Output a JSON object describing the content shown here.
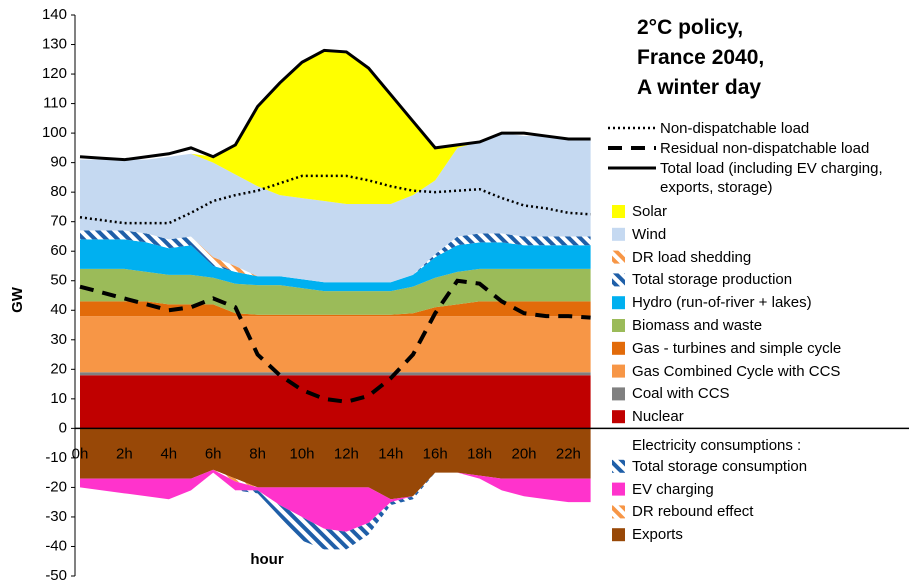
{
  "chart_data": {
    "type": "stacked-area",
    "title": [
      "2°C policy,",
      "France 2040,",
      "A winter day"
    ],
    "xlabel": "hour",
    "ylabel": "GW",
    "categories": [
      "0h",
      null,
      "2h",
      null,
      "4h",
      null,
      "6h",
      null,
      "8h",
      null,
      "10h",
      null,
      "12h",
      null,
      "14h",
      null,
      "16h",
      null,
      "18h",
      null,
      "20h",
      null,
      "22h",
      null
    ],
    "ylim": [
      -50,
      140
    ],
    "yticks": [
      -50,
      -40,
      -30,
      -20,
      -10,
      0,
      10,
      20,
      30,
      40,
      50,
      60,
      70,
      80,
      90,
      100,
      110,
      120,
      130,
      140
    ],
    "consumption_heading": "Electricity consumptions :",
    "series": [
      {
        "name": "Nuclear",
        "color": "#c00000",
        "values": [
          18,
          18,
          18,
          18,
          18,
          18,
          18,
          18,
          18,
          18,
          18,
          18,
          18,
          18,
          18,
          18,
          18,
          18,
          18,
          18,
          18,
          18,
          18,
          18
        ]
      },
      {
        "name": "Coal with CCS",
        "color": "#808080",
        "values": [
          1,
          1,
          1,
          1,
          1,
          1,
          1,
          1,
          1,
          1,
          1,
          1,
          1,
          1,
          1,
          1,
          1,
          1,
          1,
          1,
          1,
          1,
          1,
          1
        ]
      },
      {
        "name": "Gas Combined Cycle with CCS",
        "color": "#f79646",
        "values": [
          19,
          19,
          19,
          19,
          19,
          19,
          19,
          19,
          19,
          19,
          19,
          19,
          19,
          19,
          19,
          19,
          19,
          19,
          19,
          19,
          19,
          19,
          19,
          19
        ]
      },
      {
        "name": "Gas - turbines and simple cycle",
        "color": "#e26b0a",
        "values": [
          5,
          5,
          5,
          5,
          4,
          4,
          4,
          1,
          0.5,
          0.5,
          0.5,
          0.5,
          0.5,
          0.5,
          0.5,
          1,
          3,
          4,
          5,
          5,
          5,
          5,
          5,
          5
        ]
      },
      {
        "name": "Biomass and waste",
        "color": "#9bbb59",
        "values": [
          11,
          11,
          11,
          10,
          10,
          10,
          9,
          10,
          10,
          10,
          9,
          8,
          8,
          8,
          8,
          9,
          10,
          11,
          11,
          11,
          11,
          11,
          11,
          11
        ]
      },
      {
        "name": "Hydro (run-of-river + lakes)",
        "color": "#00b0f0",
        "values": [
          10,
          10,
          10,
          10,
          9,
          10,
          4,
          4,
          3,
          3,
          3,
          3,
          3,
          3,
          3,
          4,
          7,
          9,
          9,
          9,
          8,
          8,
          8,
          8
        ]
      },
      {
        "name": "Total storage production",
        "color": "#1f5fa8",
        "hatch": true,
        "values": [
          3,
          3,
          3,
          3,
          3,
          3,
          1,
          0,
          0,
          0,
          0,
          0,
          0,
          0,
          0,
          0,
          1,
          3,
          3,
          3,
          3,
          3,
          3,
          3
        ]
      },
      {
        "name": "DR load shedding",
        "color": "#f79646",
        "hatch": true,
        "values": [
          0,
          0,
          0,
          0,
          0,
          0,
          2,
          2,
          0,
          0,
          0,
          0,
          0,
          0,
          0,
          0,
          0,
          0,
          0,
          0,
          0,
          0,
          0,
          0
        ]
      },
      {
        "name": "Wind",
        "color": "#c5d9f1",
        "values": [
          24,
          24,
          24,
          25,
          28,
          28,
          32,
          31,
          30.5,
          27.5,
          27.5,
          27.5,
          26.5,
          26.5,
          26.5,
          27,
          25,
          30,
          31,
          34,
          34,
          34,
          33,
          33
        ]
      },
      {
        "name": "Solar",
        "color": "#ffff00",
        "values": [
          0,
          0,
          0,
          0,
          0,
          0,
          2,
          10,
          27,
          38,
          46,
          51,
          51.5,
          46,
          37,
          25,
          11,
          1,
          0,
          0,
          0,
          0,
          0,
          0
        ]
      },
      {
        "name": "Exports",
        "color": "#984807",
        "values": [
          -17,
          -17,
          -17,
          -17,
          -17,
          -17,
          -14,
          -17,
          -20,
          -20,
          -20,
          -20,
          -20,
          -20,
          -24,
          -23,
          -15,
          -15,
          -16,
          -17,
          -17,
          -17,
          -17,
          -17
        ]
      },
      {
        "name": "DR rebound effect",
        "color": "#f79646",
        "hatch": true,
        "values": [
          0,
          0,
          0,
          0,
          0,
          0,
          0,
          -1,
          0,
          0,
          0,
          0,
          0,
          0,
          0,
          0,
          0,
          0,
          0,
          0,
          0,
          0,
          0,
          0
        ]
      },
      {
        "name": "EV charging",
        "color": "#ff33cc",
        "values": [
          -3,
          -4,
          -5,
          -6,
          -7,
          -4,
          -1,
          -3,
          -1,
          -6,
          -10,
          -14,
          -15,
          -12,
          -1,
          0,
          0,
          0,
          -1,
          -4,
          -6,
          -7,
          -8,
          -8
        ]
      },
      {
        "name": "Total storage consumption",
        "color": "#1f5fa8",
        "hatch": true,
        "values": [
          0,
          0,
          0,
          0,
          0,
          0,
          0,
          0,
          -1,
          -4,
          -8,
          -7,
          -6,
          -4,
          -1,
          -1,
          0,
          0,
          0,
          0,
          0,
          0,
          0,
          0
        ]
      }
    ],
    "lines": [
      {
        "name": "Non-dispatchable load",
        "color": "#000000",
        "style": "dotted",
        "values": [
          71.5,
          70.5,
          69.5,
          69.5,
          69.5,
          73,
          77,
          79,
          80.5,
          83,
          85.5,
          85.5,
          85.5,
          84,
          82,
          80.5,
          80,
          80.5,
          81,
          78,
          75.5,
          74.5,
          73,
          72.5
        ]
      },
      {
        "name": "Residual non-dispatchable load",
        "color": "#000000",
        "style": "dashed",
        "values": [
          48,
          46,
          44,
          42,
          40,
          41,
          44,
          41,
          25,
          18,
          13,
          10,
          9,
          11,
          17,
          25,
          39,
          50,
          49,
          43,
          39,
          38,
          38,
          37.5
        ]
      },
      {
        "name": "Total load (including EV charging, exports, storage)",
        "color": "#000000",
        "style": "solid",
        "values": [
          92,
          91.5,
          91,
          92,
          93,
          95,
          92,
          96,
          109,
          117,
          124,
          128,
          127.5,
          122,
          113,
          104,
          95,
          96,
          97,
          100,
          100,
          99,
          98,
          98
        ]
      }
    ]
  }
}
